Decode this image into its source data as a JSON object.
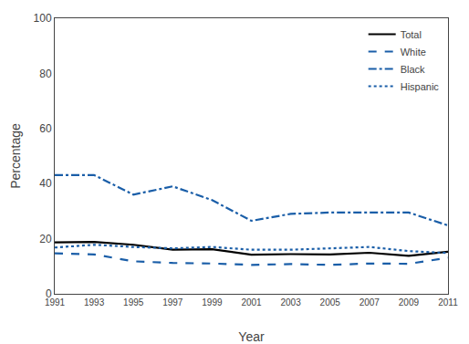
{
  "chart_data": {
    "type": "line",
    "x": [
      1991,
      1993,
      1995,
      1997,
      1999,
      2001,
      2003,
      2005,
      2007,
      2009,
      2011
    ],
    "series": [
      {
        "name": "Total",
        "color": "#000000",
        "line_style": "solid",
        "values": [
          18.7,
          18.8,
          17.8,
          16.0,
          16.2,
          14.2,
          14.4,
          14.3,
          14.9,
          13.8,
          15.3
        ]
      },
      {
        "name": "White",
        "color": "#1a5ea8",
        "line_style": "dash",
        "values": [
          14.7,
          14.3,
          11.8,
          11.2,
          11.0,
          10.5,
          10.8,
          10.5,
          11.0,
          10.9,
          13.1
        ]
      },
      {
        "name": "Black",
        "color": "#1a5ea8",
        "line_style": "dashdot",
        "values": [
          43.1,
          43.1,
          36.0,
          39.0,
          34.0,
          26.5,
          29.0,
          29.5,
          29.5,
          29.5,
          24.8
        ]
      },
      {
        "name": "Hispanic",
        "color": "#1a5ea8",
        "line_style": "dot",
        "values": [
          16.8,
          17.8,
          17.0,
          16.5,
          17.0,
          16.0,
          16.0,
          16.5,
          17.0,
          15.5,
          14.8
        ]
      }
    ],
    "xlabel": "Year",
    "ylabel": "Percentage",
    "xlim": [
      1991,
      2011
    ],
    "xticks": [
      1991,
      1993,
      1995,
      1997,
      1999,
      2001,
      2003,
      2005,
      2007,
      2009,
      2011
    ],
    "ylim": [
      0,
      100
    ],
    "yticks": [
      0,
      20,
      40,
      60,
      80,
      100
    ],
    "grid": false,
    "legend": "upper right"
  }
}
